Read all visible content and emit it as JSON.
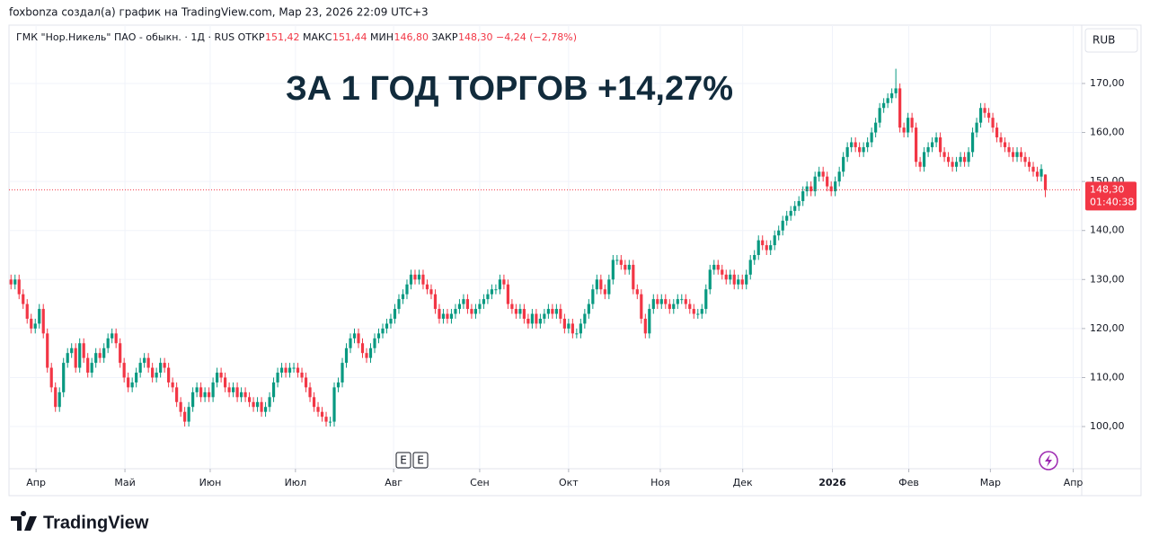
{
  "header": {
    "attribution": "foxbonza создал(а) график на TradingView.com, Мар 23, 2026 22:09 UTC+3"
  },
  "chart_data": {
    "type": "candlestick",
    "title": "ГМК \"Нор.Никель\" ПАО - обыкн. · 1Д · RUS",
    "legend": [
      {
        "label": "ОТКР",
        "value": "151,42"
      },
      {
        "label": "МАКС",
        "value": "151,44"
      },
      {
        "label": "МИН",
        "value": "146,80"
      },
      {
        "label": "ЗАКР",
        "value": "148,30"
      }
    ],
    "change": "−4,24 (−2,78%)",
    "annotation": "ЗА 1 ГОД ТОРГОВ +14,27%",
    "currency": "RUB",
    "last_price_label": "148,30",
    "countdown": "01:40:38",
    "events": [
      "E",
      "E"
    ],
    "up_color": "#089981",
    "down_color": "#f23645",
    "open": [
      130,
      129,
      130,
      127,
      125,
      122,
      120,
      121,
      124,
      119,
      112,
      108,
      104,
      107,
      113,
      115,
      116,
      112,
      117,
      114,
      111,
      113,
      115,
      114,
      116,
      118,
      119,
      117,
      113,
      110,
      108,
      109,
      111,
      113,
      114,
      112,
      110,
      111,
      113,
      112,
      109,
      108,
      105,
      103,
      101,
      104,
      107,
      108,
      106,
      107,
      106,
      109,
      111,
      110,
      108,
      107,
      108,
      106,
      107,
      106,
      105,
      104,
      105,
      103,
      104,
      106,
      109,
      111,
      112,
      111,
      112,
      112,
      111,
      110,
      108,
      106,
      104,
      103,
      102,
      101,
      101,
      108,
      109,
      113,
      116,
      118,
      119,
      117,
      115,
      114,
      116,
      118,
      119,
      120,
      121,
      122,
      124,
      126,
      127,
      129,
      131,
      130,
      131,
      129,
      128,
      127,
      124,
      122,
      123,
      122,
      123,
      124,
      125,
      126,
      124,
      123,
      124,
      125,
      126,
      127,
      128,
      128,
      130,
      129,
      125,
      124,
      123,
      124,
      122,
      121,
      123,
      121,
      122,
      123,
      124,
      123,
      124,
      122,
      120,
      121,
      119,
      119,
      121,
      123,
      125,
      128,
      130,
      128,
      127,
      130,
      134,
      134,
      133,
      132,
      133,
      128,
      127,
      122,
      119,
      124,
      126,
      125,
      126,
      125,
      124,
      125,
      126,
      126,
      125,
      124,
      123,
      123,
      124,
      128,
      132,
      133,
      132,
      131,
      130,
      131,
      129,
      130,
      129,
      131,
      134,
      135,
      138,
      137,
      136,
      137,
      139,
      140,
      142,
      143,
      144,
      145,
      146,
      148,
      149,
      148,
      151,
      152,
      151,
      149,
      148,
      150,
      152,
      155,
      157,
      158,
      157,
      156,
      157,
      158,
      160,
      162,
      165,
      166,
      167,
      168,
      169,
      161,
      160,
      163,
      161,
      154,
      153,
      156,
      157,
      158,
      159,
      156,
      155,
      154,
      153,
      154,
      155,
      154,
      156,
      160,
      162,
      165,
      164,
      163,
      161,
      159,
      158,
      157,
      156,
      155,
      156,
      155,
      154,
      153,
      152,
      151,
      151.42
    ],
    "high": [
      131,
      131,
      131,
      128,
      126,
      123,
      122,
      125,
      125,
      120,
      113,
      109,
      108,
      114,
      116,
      117,
      117,
      118,
      118,
      115,
      114,
      116,
      116,
      117,
      119,
      120,
      120,
      118,
      114,
      111,
      110,
      112,
      114,
      115,
      115,
      113,
      112,
      114,
      114,
      113,
      110,
      109,
      106,
      104,
      105,
      108,
      109,
      109,
      108,
      108,
      110,
      112,
      112,
      111,
      109,
      109,
      109,
      108,
      108,
      107,
      106,
      106,
      106,
      105,
      107,
      110,
      112,
      113,
      113,
      113,
      113,
      113,
      112,
      111,
      109,
      107,
      105,
      104,
      103,
      102,
      109,
      110,
      114,
      117,
      119,
      120,
      120,
      118,
      116,
      117,
      119,
      120,
      121,
      122,
      123,
      125,
      127,
      128,
      130,
      132,
      132,
      132,
      132,
      130,
      129,
      128,
      125,
      124,
      124,
      124,
      125,
      126,
      127,
      127,
      125,
      125,
      126,
      127,
      128,
      129,
      129,
      131,
      131,
      130,
      126,
      125,
      125,
      125,
      123,
      124,
      124,
      123,
      124,
      125,
      125,
      125,
      125,
      123,
      122,
      122,
      120,
      122,
      124,
      126,
      129,
      131,
      131,
      129,
      131,
      135,
      135,
      135,
      134,
      134,
      134,
      129,
      128,
      123,
      125,
      127,
      127,
      127,
      127,
      126,
      126,
      127,
      127,
      127,
      126,
      125,
      124,
      125,
      129,
      133,
      134,
      134,
      133,
      132,
      132,
      132,
      131,
      131,
      132,
      135,
      136,
      139,
      139,
      138,
      138,
      140,
      141,
      143,
      144,
      145,
      146,
      147,
      149,
      150,
      150,
      152,
      153,
      153,
      152,
      150,
      151,
      153,
      156,
      158,
      159,
      159,
      158,
      158,
      159,
      161,
      163,
      166,
      167,
      168,
      169,
      173,
      170,
      162,
      164,
      164,
      162,
      155,
      157,
      158,
      159,
      160,
      160,
      157,
      156,
      155,
      155,
      156,
      156,
      157,
      161,
      163,
      166,
      166,
      165,
      164,
      162,
      160,
      159,
      158,
      157,
      157,
      157,
      156,
      155,
      154,
      153,
      153.5,
      151.44
    ],
    "low": [
      128,
      128,
      126,
      124,
      121,
      119,
      119,
      120,
      118,
      111,
      107,
      103,
      103,
      106,
      112,
      114,
      111,
      111,
      113,
      110,
      110,
      112,
      113,
      113,
      115,
      117,
      116,
      112,
      109,
      107,
      107,
      108,
      110,
      112,
      111,
      109,
      109,
      110,
      111,
      108,
      107,
      104,
      102,
      100,
      100,
      103,
      106,
      105,
      105,
      105,
      105,
      108,
      109,
      107,
      106,
      106,
      105,
      105,
      105,
      104,
      103,
      103,
      102,
      102,
      103,
      105,
      108,
      110,
      110,
      110,
      111,
      110,
      109,
      107,
      105,
      103,
      102,
      101,
      100,
      100,
      100,
      107,
      108,
      112,
      115,
      117,
      116,
      114,
      113,
      113,
      115,
      117,
      118,
      119,
      120,
      121,
      123,
      125,
      126,
      128,
      129,
      129,
      128,
      127,
      126,
      123,
      121,
      121,
      121,
      121,
      122,
      123,
      124,
      123,
      122,
      122,
      123,
      124,
      125,
      126,
      127,
      127,
      128,
      124,
      123,
      122,
      122,
      121,
      120,
      120,
      120,
      120,
      121,
      122,
      122,
      122,
      121,
      119,
      119,
      118,
      118,
      118,
      120,
      122,
      124,
      127,
      127,
      126,
      126,
      129,
      133,
      132,
      131,
      131,
      127,
      126,
      121,
      118,
      118,
      123,
      124,
      124,
      124,
      123,
      123,
      124,
      125,
      124,
      123,
      122,
      122,
      122,
      123,
      127,
      131,
      131,
      130,
      129,
      129,
      128,
      128,
      128,
      128,
      130,
      133,
      134,
      136,
      135,
      135,
      136,
      138,
      139,
      141,
      142,
      143,
      144,
      145,
      147,
      147,
      147,
      150,
      150,
      148,
      147,
      147,
      149,
      151,
      154,
      156,
      156,
      155,
      155,
      156,
      157,
      159,
      161,
      164,
      165,
      166,
      167,
      160,
      159,
      159,
      160,
      153,
      152,
      152,
      155,
      156,
      157,
      155,
      154,
      153,
      152,
      152,
      153,
      153,
      153,
      155,
      159,
      161,
      163,
      162,
      160,
      158,
      157,
      156,
      155,
      154,
      154,
      154,
      153,
      152,
      151,
      150,
      150,
      146.8
    ],
    "close": [
      129,
      130,
      127,
      125,
      122,
      120,
      121,
      124,
      119,
      112,
      108,
      104,
      107,
      113,
      115,
      116,
      112,
      117,
      114,
      111,
      113,
      115,
      114,
      116,
      118,
      119,
      117,
      113,
      110,
      108,
      109,
      111,
      113,
      114,
      112,
      110,
      111,
      113,
      112,
      109,
      108,
      105,
      103,
      101,
      104,
      107,
      108,
      106,
      107,
      106,
      109,
      111,
      110,
      108,
      107,
      108,
      106,
      107,
      106,
      105,
      104,
      105,
      103,
      104,
      106,
      109,
      111,
      112,
      111,
      112,
      112,
      111,
      110,
      108,
      106,
      104,
      103,
      102,
      101,
      101,
      108,
      109,
      113,
      116,
      118,
      119,
      117,
      115,
      114,
      116,
      118,
      119,
      120,
      121,
      122,
      124,
      126,
      127,
      129,
      131,
      130,
      131,
      129,
      128,
      127,
      124,
      122,
      123,
      122,
      123,
      124,
      125,
      126,
      124,
      123,
      124,
      125,
      126,
      127,
      128,
      128,
      130,
      129,
      125,
      124,
      123,
      124,
      122,
      121,
      123,
      121,
      122,
      123,
      124,
      123,
      124,
      122,
      120,
      121,
      119,
      119,
      121,
      123,
      125,
      128,
      130,
      128,
      127,
      130,
      134,
      134,
      133,
      132,
      133,
      128,
      127,
      122,
      119,
      124,
      126,
      125,
      126,
      125,
      124,
      125,
      126,
      126,
      125,
      124,
      123,
      123,
      124,
      128,
      132,
      133,
      132,
      131,
      130,
      131,
      129,
      130,
      129,
      131,
      134,
      135,
      138,
      137,
      136,
      137,
      139,
      140,
      142,
      143,
      144,
      145,
      146,
      148,
      149,
      148,
      151,
      152,
      151,
      149,
      148,
      150,
      152,
      155,
      157,
      158,
      157,
      156,
      157,
      158,
      160,
      162,
      165,
      166,
      167,
      168,
      169,
      161,
      160,
      163,
      161,
      154,
      153,
      156,
      157,
      158,
      159,
      156,
      155,
      154,
      153,
      154,
      155,
      154,
      156,
      160,
      162,
      165,
      164,
      163,
      161,
      159,
      158,
      157,
      156,
      155,
      156,
      155,
      154,
      153,
      152,
      151,
      152.54,
      148.3
    ],
    "xlim": [
      -0.5,
      265
    ],
    "xticks": [
      {
        "value": 6.2,
        "label": "Апр"
      },
      {
        "value": 28.2,
        "label": "Май"
      },
      {
        "value": 49.3,
        "label": "Июн"
      },
      {
        "value": 70.4,
        "label": "Июл"
      },
      {
        "value": 94.7,
        "label": "Авг"
      },
      {
        "value": 116,
        "label": "Сен"
      },
      {
        "value": 138,
        "label": "Окт"
      },
      {
        "value": 160.7,
        "label": "Ноя"
      },
      {
        "value": 181.1,
        "label": "Дек"
      },
      {
        "value": 203.3,
        "label": "2026"
      },
      {
        "value": 222.2,
        "label": "Фев"
      },
      {
        "value": 242.4,
        "label": "Мар"
      },
      {
        "value": 262.9,
        "label": "Апр"
      }
    ],
    "ylim": [
      91.4,
      181.9
    ],
    "yticks": [
      {
        "value": 100,
        "label": "100,00"
      },
      {
        "value": 110,
        "label": "110,00"
      },
      {
        "value": 120,
        "label": "120,00"
      },
      {
        "value": 130,
        "label": "130,00"
      },
      {
        "value": 140,
        "label": "140,00"
      },
      {
        "value": 150,
        "label": "150,00"
      },
      {
        "value": 160,
        "label": "160,00"
      },
      {
        "value": 170,
        "label": "170,00"
      }
    ],
    "grid": true
  },
  "footer": {
    "logo": "TradingView"
  }
}
